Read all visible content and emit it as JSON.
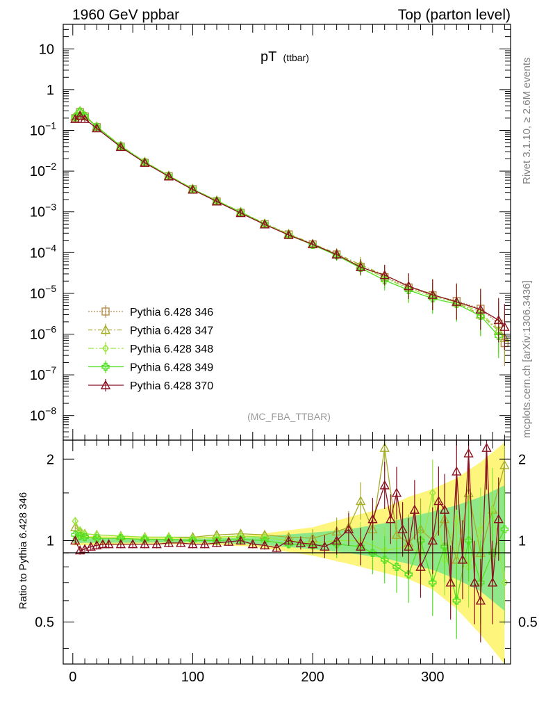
{
  "header": {
    "left": "1960 GeV ppbar",
    "right": "Top (parton level)"
  },
  "side_labels": {
    "top": "Rivet 3.1.10, ≥ 2.6M events",
    "bottom": "mcplots.cern.ch [arXiv:1306.3436]"
  },
  "chart_data": [
    {
      "type": "line",
      "title_main": "pT",
      "title_sub": "(ttbar)",
      "annotation": "(MC_FBA_TTBAR)",
      "xlim": [
        -8,
        365
      ],
      "ylim": [
        2.5e-09,
        40
      ],
      "yscale": "log",
      "y_ticks": [
        {
          "v": 10,
          "label": "10"
        },
        {
          "v": 1,
          "label": "1"
        },
        {
          "v": 0.1,
          "label": "10",
          "exp": "−1"
        },
        {
          "v": 0.01,
          "label": "10",
          "exp": "−2"
        },
        {
          "v": 0.001,
          "label": "10",
          "exp": "−3"
        },
        {
          "v": 0.0001,
          "label": "10",
          "exp": "−4"
        },
        {
          "v": 1e-05,
          "label": "10",
          "exp": "−5"
        },
        {
          "v": 1e-06,
          "label": "10",
          "exp": "−6"
        },
        {
          "v": 1e-07,
          "label": "10",
          "exp": "−7"
        },
        {
          "v": 1e-08,
          "label": "10",
          "exp": "−8"
        }
      ],
      "legend_position": "bottom-left",
      "series": [
        {
          "name": "Pythia 6.428 346",
          "color": "#b58a4a",
          "marker": "square",
          "dash": "2,2",
          "x": [
            2,
            6,
            10,
            20,
            40,
            60,
            80,
            100,
            120,
            140,
            160,
            180,
            200,
            220,
            240,
            260,
            280,
            300,
            320,
            340,
            355,
            360
          ],
          "y": [
            0.2,
            0.28,
            0.22,
            0.12,
            0.04,
            0.016,
            0.0075,
            0.0036,
            0.0018,
            0.00095,
            0.0005,
            0.00028,
            0.00016,
            9e-05,
            4.5e-05,
            2.5e-05,
            1.4e-05,
            9e-06,
            6.5e-06,
            4.2e-06,
            1.8e-06,
            6e-07
          ]
        },
        {
          "name": "Pythia 6.428 347",
          "color": "#a5ad2a",
          "marker": "triangle",
          "dash": "6,3,2,3",
          "x": [
            2,
            6,
            10,
            20,
            40,
            60,
            80,
            100,
            120,
            140,
            160,
            180,
            200,
            220,
            240,
            260,
            280,
            300,
            320,
            340,
            355,
            360
          ],
          "y": [
            0.22,
            0.3,
            0.23,
            0.125,
            0.042,
            0.017,
            0.0078,
            0.0037,
            0.0019,
            0.001,
            0.00052,
            0.00029,
            0.000165,
            9.5e-05,
            5e-05,
            2.8e-05,
            1.5e-05,
            9.5e-06,
            6e-06,
            3e-06,
            1.2e-06,
            8e-07
          ]
        },
        {
          "name": "Pythia 6.428 348",
          "color": "#9ae63c",
          "marker": "diamond",
          "dash": "8,3,2,3",
          "x": [
            2,
            6,
            10,
            20,
            40,
            60,
            80,
            100,
            120,
            140,
            160,
            180,
            200,
            220,
            240,
            260,
            280,
            300,
            320,
            340,
            355
          ],
          "y": [
            0.22,
            0.3,
            0.23,
            0.125,
            0.042,
            0.017,
            0.0078,
            0.0037,
            0.0019,
            0.001,
            0.00051,
            0.00028,
            0.00016,
            9e-05,
            4.6e-05,
            2.4e-05,
            1.3e-05,
            8.5e-06,
            6e-06,
            3.5e-06,
            1.2e-06
          ]
        },
        {
          "name": "Pythia 6.428 349",
          "color": "#4ee01e",
          "marker": "cross",
          "dash": "",
          "x": [
            2,
            6,
            10,
            20,
            40,
            60,
            80,
            100,
            120,
            140,
            160,
            180,
            200,
            220,
            240,
            260,
            280,
            300,
            320,
            340,
            355
          ],
          "y": [
            0.21,
            0.29,
            0.225,
            0.122,
            0.041,
            0.0165,
            0.0076,
            0.0036,
            0.00185,
            0.00097,
            0.0005,
            0.00027,
            0.000155,
            8.5e-05,
            4.2e-05,
            2.1e-05,
            1.2e-05,
            7.5e-06,
            5.5e-06,
            2.8e-06,
            9e-07
          ]
        },
        {
          "name": "Pythia 6.428 370",
          "color": "#8b1020",
          "marker": "triangle",
          "dash": "",
          "x": [
            2,
            6,
            10,
            20,
            40,
            60,
            80,
            100,
            120,
            140,
            160,
            180,
            200,
            220,
            240,
            260,
            280,
            300,
            320,
            340,
            355,
            360
          ],
          "y": [
            0.19,
            0.23,
            0.19,
            0.112,
            0.039,
            0.016,
            0.0074,
            0.0035,
            0.0018,
            0.00093,
            0.00049,
            0.00027,
            0.00016,
            9e-05,
            4.4e-05,
            2.8e-05,
            1.5e-05,
            9.2e-06,
            6.2e-06,
            4e-06,
            2.2e-06,
            1.5e-06
          ]
        }
      ]
    },
    {
      "type": "line",
      "ylabel": "Ratio to Pythia 6.428 346",
      "xlim": [
        -8,
        365
      ],
      "ylim": [
        0.35,
        2.35
      ],
      "yscale": "log",
      "x_ticks": [
        0,
        100,
        200,
        300
      ],
      "y_ticks": [
        0.5,
        1,
        2
      ],
      "band": {
        "x": [
          0,
          100,
          150,
          200,
          230,
          260,
          280,
          300,
          320,
          340,
          360
        ],
        "yellow_lo": [
          0.96,
          0.97,
          0.95,
          0.88,
          0.82,
          0.76,
          0.72,
          0.66,
          0.56,
          0.45,
          0.35
        ],
        "yellow_hi": [
          1.04,
          1.03,
          1.05,
          1.12,
          1.22,
          1.32,
          1.45,
          1.55,
          1.7,
          1.95,
          2.3
        ],
        "green_lo": [
          0.98,
          0.985,
          0.97,
          0.93,
          0.9,
          0.86,
          0.82,
          0.78,
          0.72,
          0.65,
          0.55
        ],
        "green_hi": [
          1.02,
          1.015,
          1.03,
          1.07,
          1.1,
          1.16,
          1.22,
          1.28,
          1.35,
          1.45,
          1.6
        ]
      },
      "series": [
        {
          "name": "Pythia 6.428 347",
          "x": [
            2,
            6,
            10,
            20,
            40,
            60,
            80,
            100,
            120,
            140,
            160,
            180,
            200,
            220,
            230,
            240,
            250,
            260,
            270,
            280,
            290,
            300,
            310,
            320,
            330,
            340,
            350,
            360
          ],
          "y": [
            1.12,
            1.08,
            1.06,
            1.05,
            1.04,
            1.03,
            1.03,
            1.03,
            1.05,
            1.06,
            1.05,
            1.03,
            1.02,
            1.08,
            1.12,
            1.4,
            1.1,
            2.2,
            1.05,
            0.98,
            1.1,
            1.0,
            1.2,
            0.85,
            1.5,
            0.9,
            1.3,
            1.9
          ]
        },
        {
          "name": "Pythia 6.428 348",
          "x": [
            2,
            6,
            10,
            20,
            40,
            60,
            80,
            100,
            120,
            140,
            160,
            180,
            200,
            220,
            240,
            260,
            280,
            290,
            300,
            310,
            320,
            330,
            340,
            350,
            360
          ],
          "y": [
            1.18,
            1.09,
            1.06,
            1.05,
            1.04,
            1.03,
            1.03,
            1.02,
            1.03,
            1.04,
            1.03,
            1.0,
            0.98,
            1.0,
            1.0,
            0.92,
            0.95,
            0.9,
            1.5,
            0.85,
            1.2,
            0.8,
            1.1,
            1.3,
            0.7
          ]
        },
        {
          "name": "Pythia 6.428 349",
          "x": [
            2,
            6,
            10,
            20,
            40,
            60,
            80,
            100,
            120,
            140,
            160,
            180,
            200,
            220,
            240,
            250,
            260,
            270,
            280,
            290,
            300,
            310,
            320,
            330,
            340,
            350,
            360
          ],
          "y": [
            1.05,
            1.04,
            1.03,
            1.02,
            1.02,
            1.01,
            1.01,
            1.0,
            1.0,
            1.01,
            1.0,
            0.97,
            0.96,
            0.97,
            0.95,
            0.9,
            0.85,
            0.8,
            0.75,
            1.0,
            0.7,
            0.95,
            0.6,
            1.0,
            0.7,
            0.9,
            1.1
          ]
        },
        {
          "name": "Pythia 6.428 370",
          "x": [
            2,
            6,
            10,
            15,
            20,
            25,
            30,
            40,
            50,
            60,
            70,
            80,
            90,
            100,
            110,
            120,
            130,
            140,
            150,
            160,
            170,
            180,
            190,
            200,
            210,
            220,
            230,
            240,
            250,
            260,
            265,
            270,
            275,
            280,
            285,
            290,
            300,
            305,
            310,
            315,
            320,
            325,
            330,
            335,
            340,
            345,
            350,
            355
          ],
          "y": [
            1.0,
            0.92,
            0.93,
            0.95,
            0.96,
            0.97,
            0.97,
            0.97,
            0.97,
            0.97,
            0.97,
            0.98,
            0.98,
            0.97,
            0.97,
            0.98,
            0.99,
            1.0,
            0.97,
            0.96,
            0.94,
            1.0,
            0.98,
            0.97,
            0.95,
            1.0,
            1.1,
            0.95,
            1.2,
            1.6,
            1.2,
            1.5,
            1.1,
            0.95,
            1.3,
            0.8,
            1.0,
            1.4,
            1.3,
            0.7,
            1.8,
            0.85,
            2.1,
            0.7,
            0.6,
            2.2,
            0.7,
            1.2
          ]
        }
      ]
    }
  ]
}
